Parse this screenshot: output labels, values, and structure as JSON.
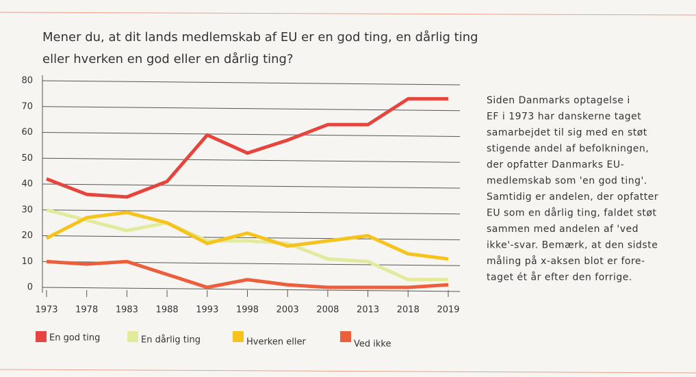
{
  "chart_data": {
    "type": "line",
    "title_lines": [
      "Mener du, at dit lands medlemskab af EU er en god ting, en dårlig ting",
      "eller hverken en god eller en dårlig ting?"
    ],
    "categories": [
      "1973",
      "1978",
      "1983",
      "1988",
      "1993",
      "1998",
      "2003",
      "2008",
      "2013",
      "2018",
      "2019"
    ],
    "series": [
      {
        "name": "En god ting",
        "color": "#e5453c",
        "values": [
          42,
          36,
          35,
          41,
          59,
          52,
          57,
          63,
          63,
          73,
          73
        ]
      },
      {
        "name": "En dårlig ting",
        "color": "#e4ea9c",
        "values": [
          30,
          26,
          22,
          25,
          18,
          18,
          17,
          11,
          10,
          3,
          3
        ]
      },
      {
        "name": "Hverken eller",
        "color": "#f6c31c",
        "values": [
          19,
          27,
          29,
          25,
          17,
          21,
          16,
          18,
          20,
          13,
          11
        ]
      },
      {
        "name": "Ved ikke",
        "color": "#ec5e3c",
        "values": [
          10,
          9,
          10,
          5,
          0,
          3,
          1,
          0,
          0,
          0,
          1
        ]
      }
    ],
    "ylim": [
      0,
      80
    ],
    "yticks": [
      0,
      10,
      20,
      30,
      40,
      50,
      60,
      70,
      80
    ],
    "grid": true,
    "annotation_lines": [
      "Siden Danmarks optagelse i",
      "EF i 1973 har danskerne taget",
      "samarbejdet til sig med en støt",
      "stigende andel af befolkningen,",
      "der opfatter Danmarks EU-",
      "medlemskab som 'en god ting'.",
      "Samtidig er andelen, der opfatter",
      "EU som en dårlig ting, faldet støt",
      "sammen med andelen af 'ved",
      "ikke'-svar. Bemærk, at den sidste",
      "måling på x-aksen blot er fore-",
      "taget ét år efter den forrige."
    ]
  }
}
